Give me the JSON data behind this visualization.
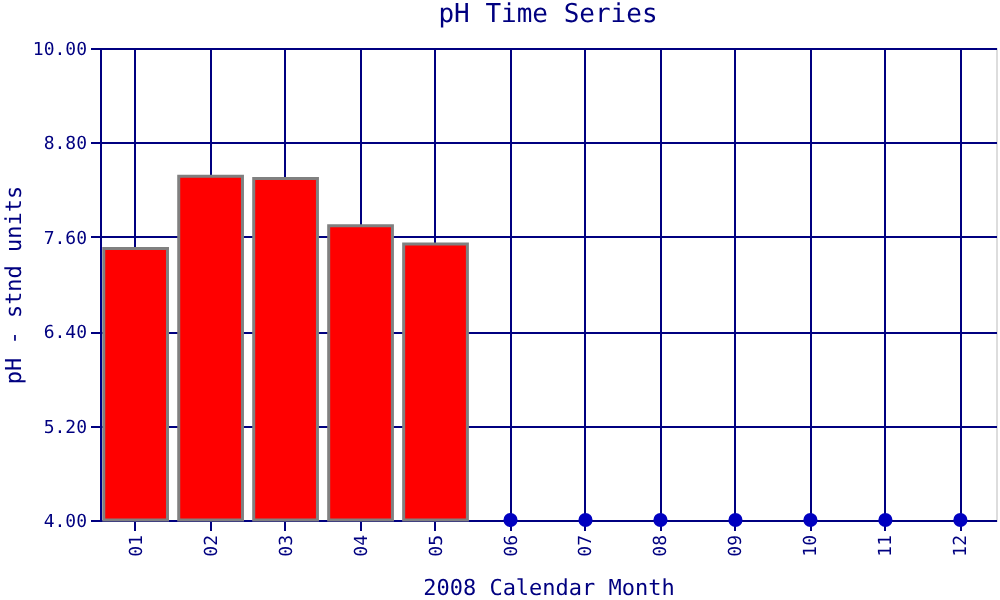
{
  "chart_data": {
    "type": "bar",
    "title": "pH Time Series",
    "xlabel": "2008 Calendar Month",
    "ylabel": "pH - stnd units",
    "categories": [
      "01",
      "02",
      "03",
      "04",
      "05",
      "06",
      "07",
      "08",
      "09",
      "10",
      "11",
      "12"
    ],
    "series": [
      {
        "color": "#ff0000",
        "values": [
          7.45,
          8.37,
          8.34,
          7.74,
          7.51,
          null,
          null,
          null,
          null,
          null,
          null,
          null
        ]
      },
      {
        "type": "scatter",
        "color": "#0000c0",
        "x": [
          "06",
          "07",
          "08",
          "09",
          "10",
          "11",
          "12"
        ],
        "values": [
          4.0,
          4.0,
          4.0,
          4.0,
          4.0,
          4.0,
          4.0
        ]
      }
    ],
    "ylim": [
      4.0,
      10.0
    ],
    "yticks": [
      {
        "value": 4.0,
        "label": "4.00"
      },
      {
        "value": 5.2,
        "label": "5.20"
      },
      {
        "value": 6.4,
        "label": "6.40"
      },
      {
        "value": 7.6,
        "label": "7.60"
      },
      {
        "value": 8.8,
        "label": "8.80"
      },
      {
        "value": 10.0,
        "label": "10.00"
      }
    ],
    "grid": true,
    "marker": "circle"
  }
}
